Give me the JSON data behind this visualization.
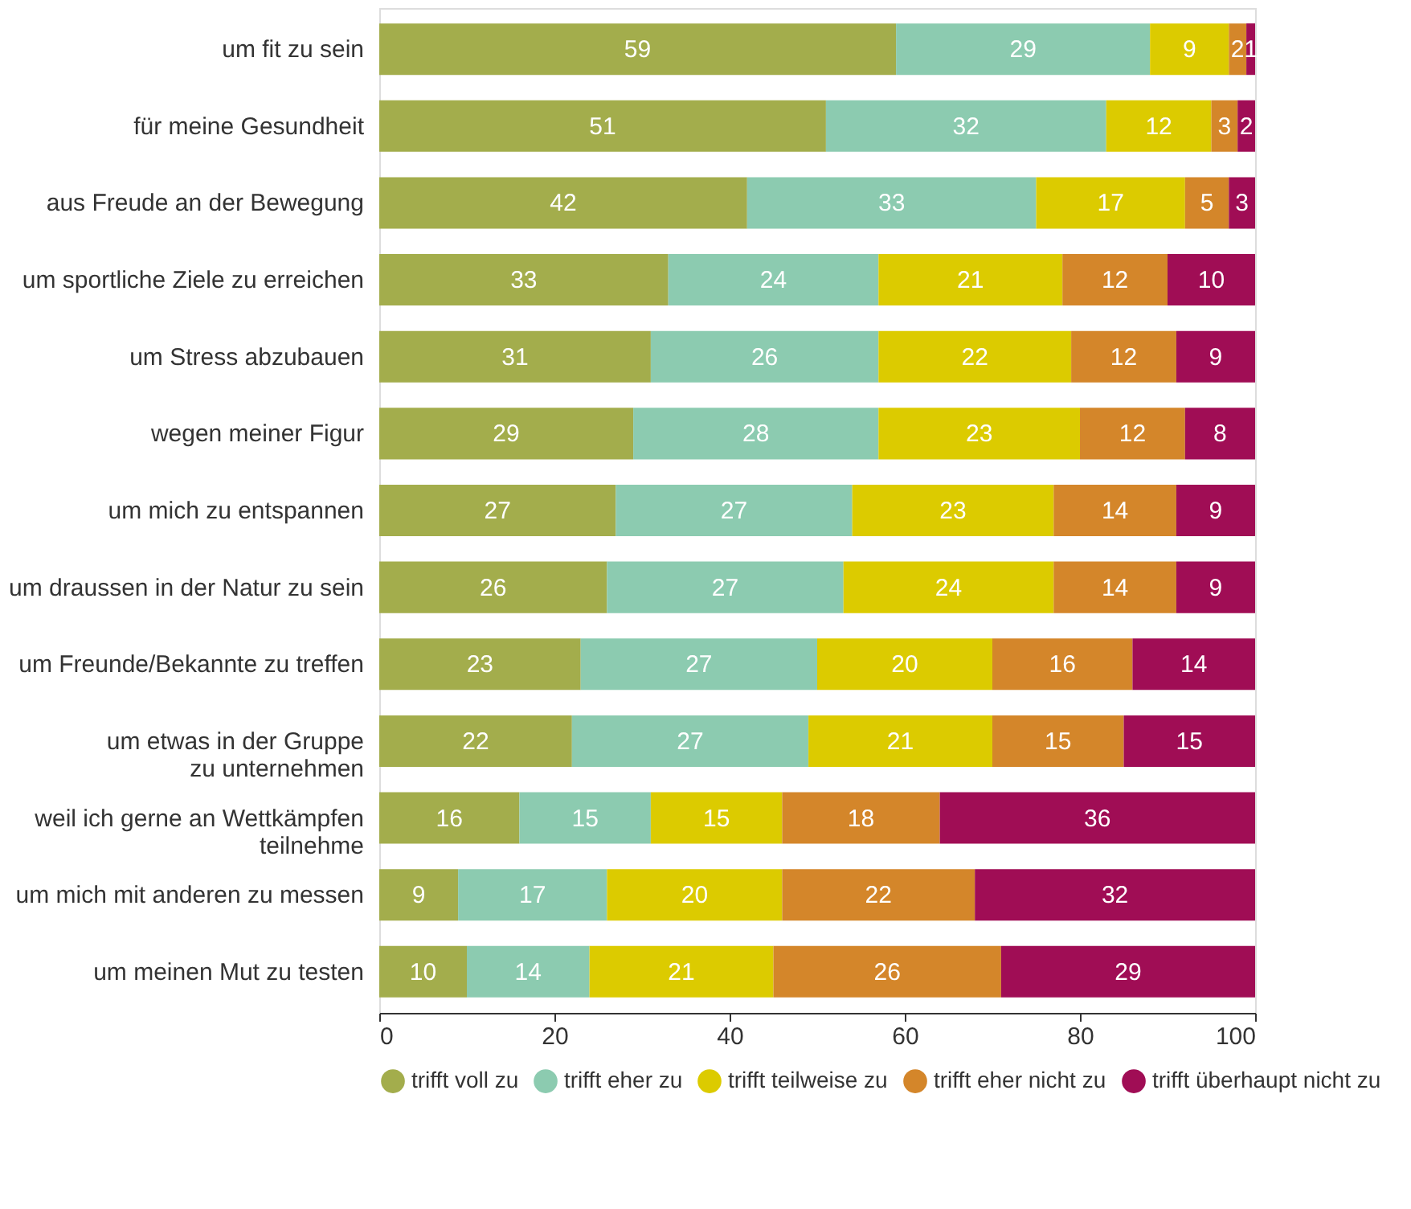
{
  "chart_data": {
    "type": "bar",
    "orientation": "horizontal",
    "stacked": true,
    "data_labels": true,
    "legend": "bottom",
    "grid": false,
    "categories": [
      "um fit zu sein",
      "für meine Gesundheit",
      "aus Freude an der Bewegung",
      "um sportliche Ziele zu erreichen",
      "um Stress abzubauen",
      "wegen meiner Figur",
      "um mich zu entspannen",
      "um draussen in der Natur zu sein",
      "um Freunde/Bekannte zu treffen",
      "um etwas in der Gruppe\nzu unternehmen",
      "weil ich gerne an Wettkämpfen\nteilnehme",
      "um mich mit anderen zu messen",
      "um meinen Mut zu testen"
    ],
    "xlim": [
      0,
      100
    ],
    "xticks": [
      0,
      20,
      40,
      60,
      80,
      100
    ],
    "series": [
      {
        "name": "trifft voll zu",
        "color": "#a3ad4c",
        "values": [
          59,
          51,
          42,
          33,
          31,
          29,
          27,
          26,
          23,
          22,
          16,
          9,
          10
        ]
      },
      {
        "name": "trifft eher zu",
        "color": "#8ccbb0",
        "values": [
          29,
          32,
          33,
          24,
          26,
          28,
          27,
          27,
          27,
          27,
          15,
          17,
          14
        ]
      },
      {
        "name": "trifft teilweise zu",
        "color": "#dccb00",
        "values": [
          9,
          12,
          17,
          21,
          22,
          23,
          23,
          24,
          20,
          21,
          15,
          20,
          21
        ]
      },
      {
        "name": "trifft eher nicht zu",
        "color": "#d4862a",
        "values": [
          2,
          3,
          5,
          12,
          12,
          12,
          14,
          14,
          16,
          15,
          18,
          22,
          26
        ]
      },
      {
        "name": "trifft überhaupt nicht zu",
        "color": "#a00d55",
        "values": [
          1,
          2,
          3,
          10,
          9,
          8,
          9,
          9,
          14,
          15,
          36,
          32,
          29
        ]
      }
    ]
  }
}
